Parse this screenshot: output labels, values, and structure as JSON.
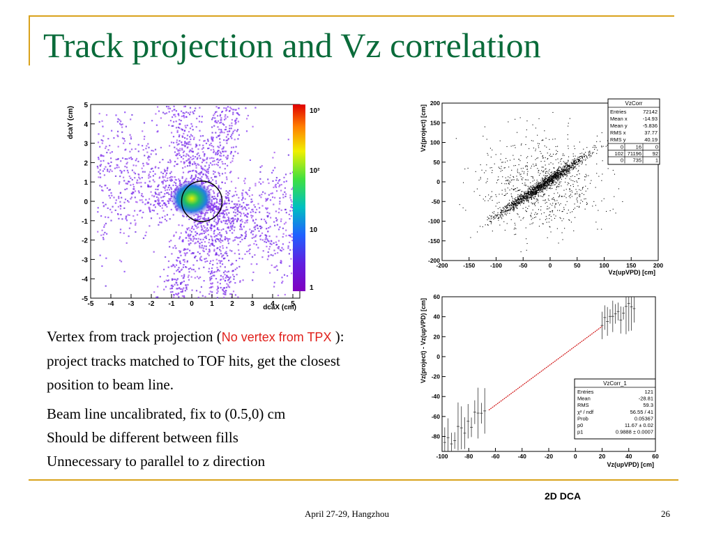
{
  "slide": {
    "title": "Track projection and Vz correlation",
    "body_line1_prefix": "Vertex from track projection (",
    "body_line1_red": "No vertex from TPX",
    "body_line1_suffix": " ): project tracks matched to TOF hits, get the closest position to beam line.",
    "body_para2": [
      "Beam line uncalibrated, fix to (0.5,0) cm",
      "Should be different between fills",
      "Unnecessary to parallel to z direction"
    ],
    "caption": "2D DCA",
    "footer_center": "April 27-29, Hangzhou",
    "page_number": "26"
  },
  "chart_data": [
    {
      "type": "heatmap",
      "xlabel": "dcaX (cm)",
      "ylabel": "dcaY (cm)",
      "xlim": [
        -5,
        5
      ],
      "ylim": [
        -5,
        5
      ],
      "x_ticks": [
        "-5",
        "-4",
        "-3",
        "-2",
        "-1",
        "0",
        "1",
        "2",
        "3",
        "4",
        "5"
      ],
      "y_ticks": [
        "5",
        "4",
        "3",
        "2",
        "1",
        "0",
        "-1",
        "-2",
        "-3",
        "-4",
        "-5"
      ],
      "colorbar_log_scale": true,
      "colorbar_ticks": [
        "10³",
        "10²",
        "10",
        "1"
      ],
      "circle_center": [
        0.5,
        0
      ],
      "circle_radius": 1
    },
    {
      "type": "scatter",
      "xlabel": "Vz(upVPD) [cm]",
      "ylabel": "Vz(project) [cm]",
      "xlim": [
        -200,
        200
      ],
      "ylim": [
        -200,
        200
      ],
      "x_ticks": [
        "-200",
        "-150",
        "-100",
        "-50",
        "0",
        "50",
        "100",
        "150",
        "200"
      ],
      "y_ticks": [
        "200",
        "150",
        "100",
        "50",
        "0",
        "-50",
        "-100",
        "-150",
        "-200"
      ],
      "stats_box": {
        "name": "VzCorr",
        "rows": [
          [
            "Entries",
            "72142"
          ],
          [
            "Mean x",
            "-14.93"
          ],
          [
            "Mean y",
            "-5.836"
          ],
          [
            "RMS x",
            "37.77"
          ],
          [
            "RMS y",
            "40.19"
          ]
        ],
        "grid": [
          [
            "0",
            "16",
            "0"
          ],
          [
            "102",
            "71196",
            "92"
          ],
          [
            "0",
            "735",
            "1"
          ]
        ]
      }
    },
    {
      "type": "scatter",
      "xlabel": "Vz(upVPD) [cm]",
      "ylabel": "Vz(project) - Vz(upVPD) [cm]",
      "xlim": [
        -100,
        60
      ],
      "ylim": [
        -95,
        60
      ],
      "x_ticks": [
        "-100",
        "-80",
        "-60",
        "-40",
        "-20",
        "0",
        "20",
        "40",
        "60"
      ],
      "y_ticks": [
        "60",
        "40",
        "20",
        "0",
        "-20",
        "-40",
        "-60",
        "-80"
      ],
      "fit_line": {
        "x": [
          -65,
          20
        ],
        "y": [
          -53.6,
          30.3
        ]
      },
      "stats_box": {
        "name": "VzCorr_1",
        "rows": [
          [
            "Entries",
            "121"
          ],
          [
            "Mean",
            "-28.81"
          ],
          [
            "RMS",
            "59.3"
          ],
          [
            "χ² / ndf",
            "56.55 / 41"
          ],
          [
            "Prob",
            "0.05367"
          ],
          [
            "p0",
            "11.67 ± 0.02"
          ],
          [
            "p1",
            "0.9888 ± 0.0007"
          ]
        ]
      }
    }
  ]
}
